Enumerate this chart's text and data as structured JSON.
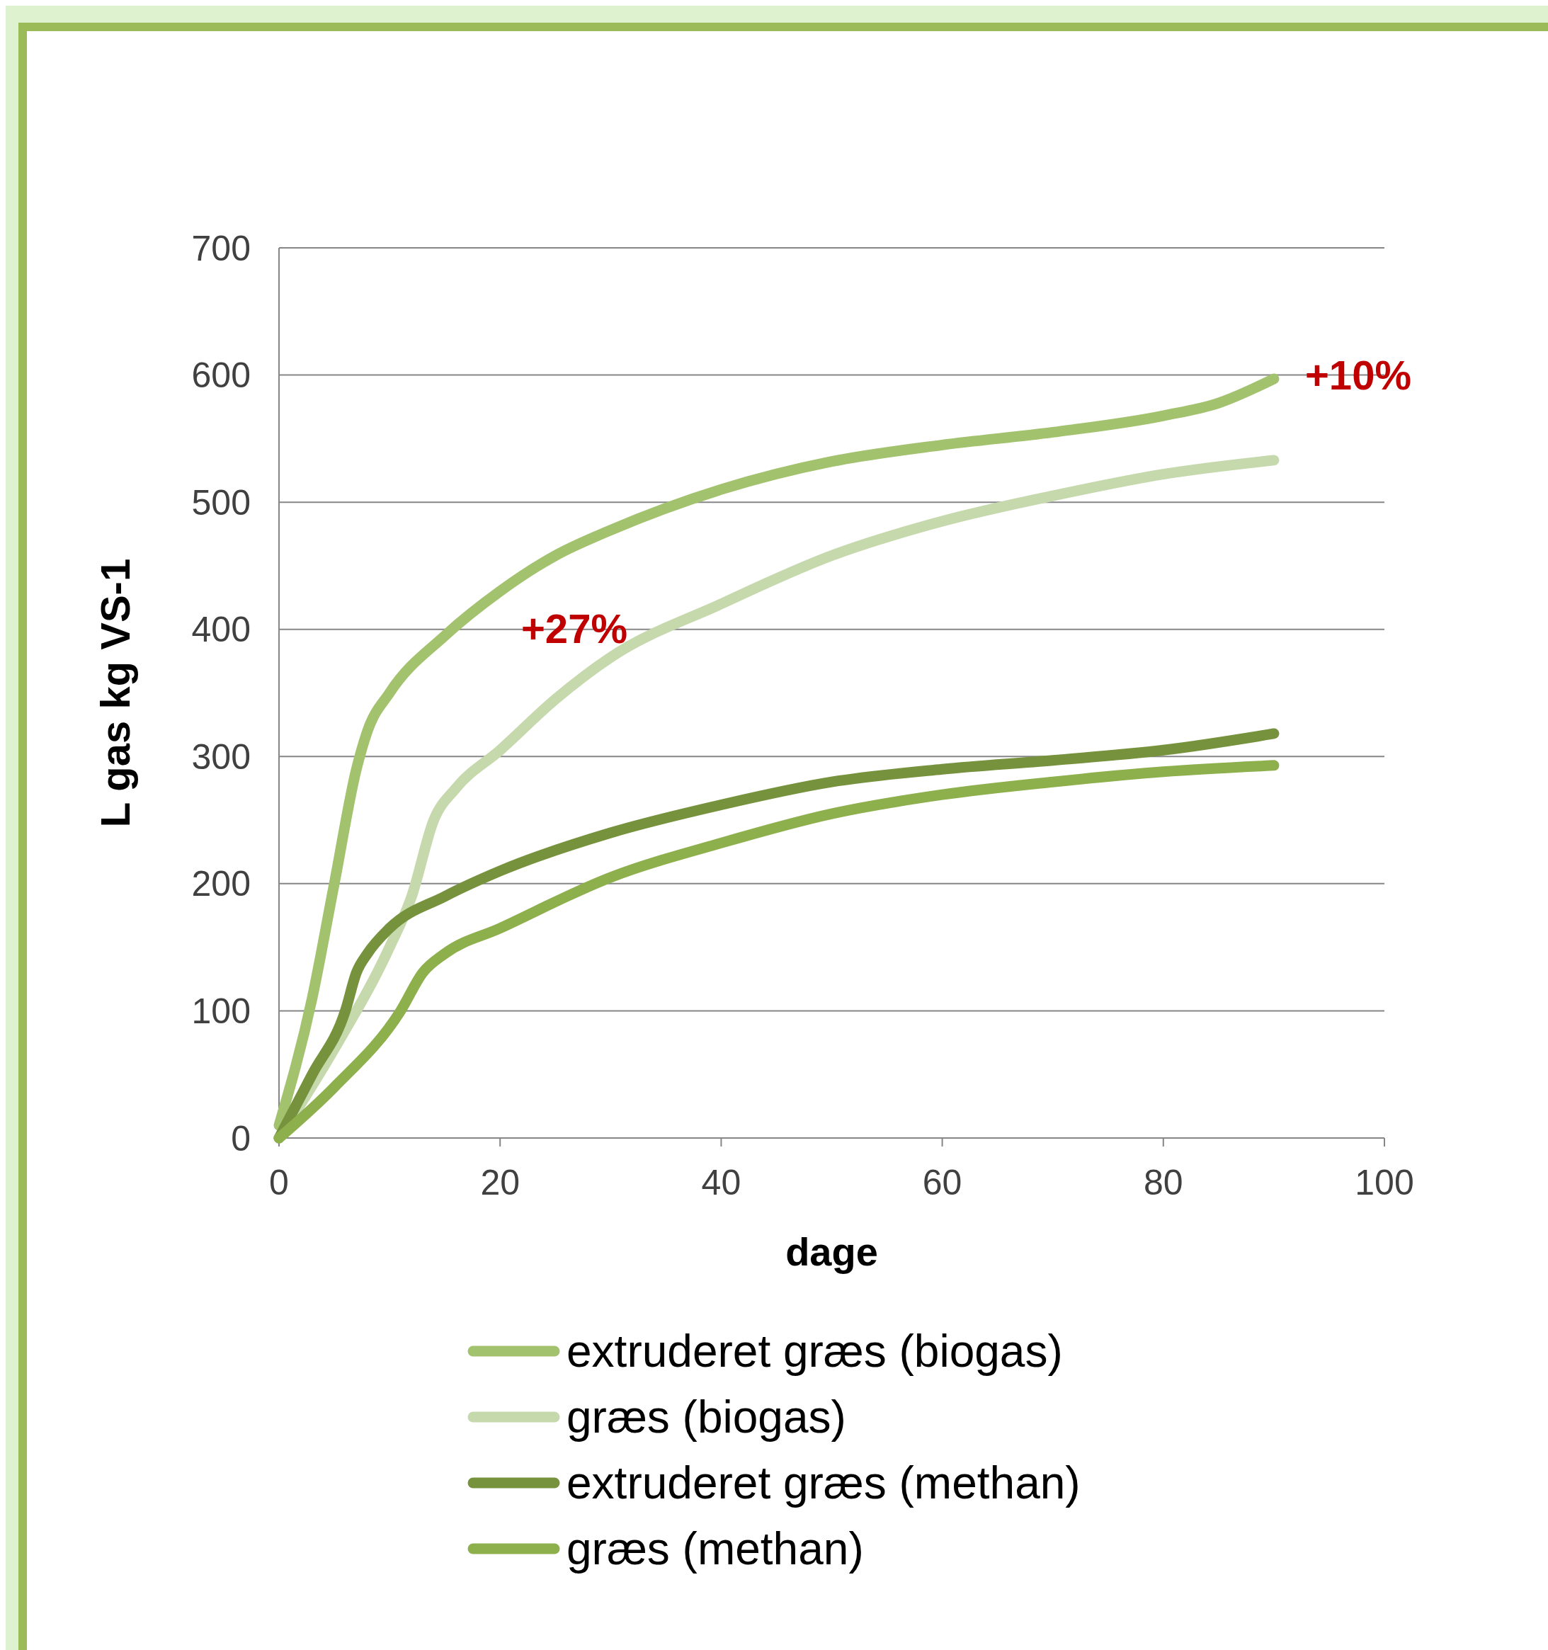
{
  "chart_data": {
    "type": "line",
    "xlabel": "dage",
    "ylabel": "L gas kg VS-1",
    "xlim": [
      0,
      100
    ],
    "xticks": [
      0,
      20,
      40,
      60,
      80,
      100
    ],
    "ylim": [
      0,
      700
    ],
    "yticks": [
      0,
      100,
      200,
      300,
      400,
      500,
      600,
      700
    ],
    "grid": "y",
    "legend": "bottom",
    "marker": "none",
    "line_style": "solid",
    "series": [
      {
        "name": "extruderet græs (biogas)",
        "color": "#a3c26e",
        "x": [
          0,
          3,
          5,
          7,
          8,
          10,
          15,
          20,
          25,
          30,
          40,
          50,
          60,
          70,
          80,
          85,
          90
        ],
        "values": [
          10,
          110,
          200,
          290,
          320,
          350,
          395,
          430,
          458,
          478,
          510,
          532,
          545,
          555,
          568,
          578,
          597
        ]
      },
      {
        "name": "græs (biogas)",
        "color": "#c6d9ad",
        "x": [
          0,
          5,
          10,
          12,
          14,
          16,
          20,
          25,
          30,
          40,
          50,
          60,
          70,
          80,
          90
        ],
        "values": [
          0,
          70,
          150,
          190,
          250,
          275,
          305,
          345,
          378,
          420,
          458,
          485,
          505,
          522,
          533
        ]
      },
      {
        "name": "extruderet græs (methan)",
        "color": "#76923c",
        "x": [
          0,
          3,
          6,
          7,
          8,
          10,
          15,
          20,
          30,
          40,
          50,
          60,
          70,
          80,
          90
        ],
        "values": [
          0,
          50,
          100,
          130,
          145,
          165,
          190,
          210,
          240,
          262,
          280,
          290,
          297,
          305,
          318
        ]
      },
      {
        "name": "græs (methan)",
        "color": "#8db04d",
        "x": [
          0,
          5,
          11,
          13,
          15,
          20,
          30,
          40,
          50,
          60,
          70,
          80,
          90
        ],
        "values": [
          0,
          40,
          100,
          130,
          145,
          165,
          205,
          232,
          255,
          270,
          280,
          288,
          293
        ]
      }
    ],
    "annotations": [
      "+10%",
      "+27%"
    ]
  }
}
